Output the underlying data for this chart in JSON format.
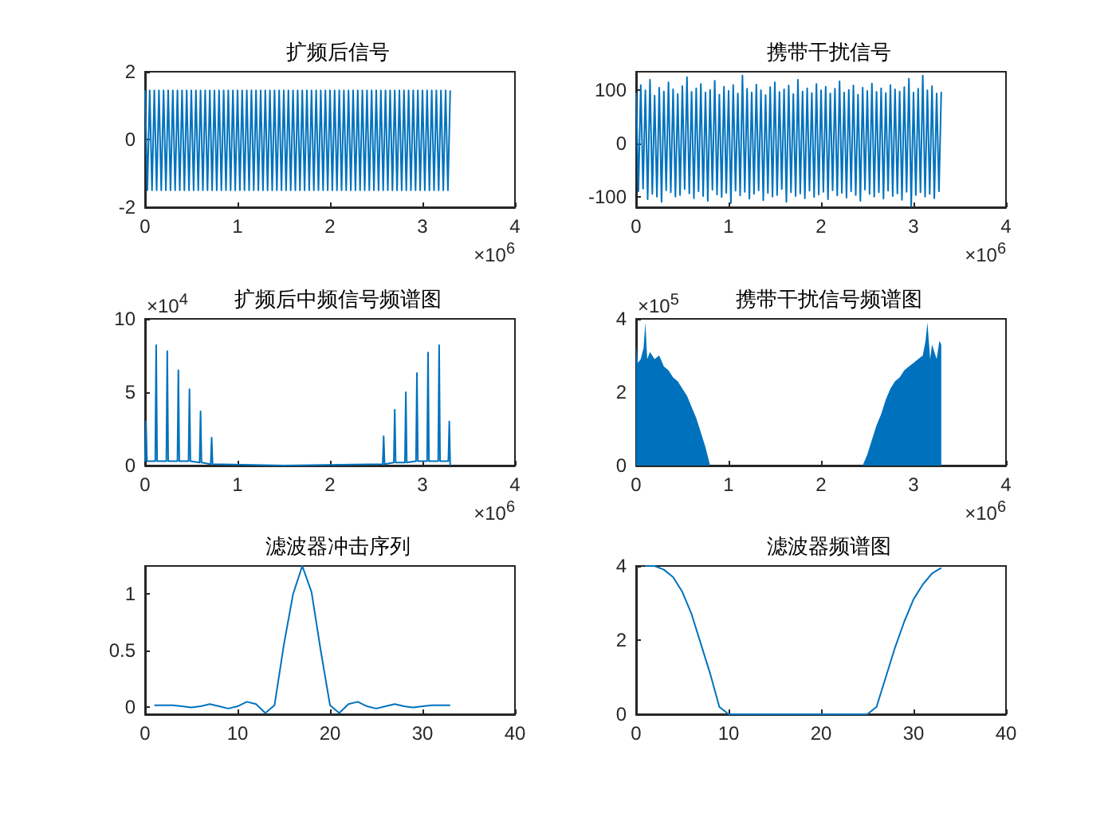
{
  "chart_data": [
    {
      "type": "line",
      "title": "扩频后信号",
      "xlabel": "×10$^{6}$",
      "xlim": [
        0,
        4
      ],
      "xticks": [
        0,
        1,
        2,
        3,
        4
      ],
      "ylim": [
        -2,
        2
      ],
      "yticks": [
        -2,
        0,
        2
      ],
      "grid": false,
      "x": [
        0,
        0.025,
        0.05,
        0.075,
        0.1,
        0.125,
        0.15,
        0.175,
        0.2,
        0.225,
        0.25,
        0.275,
        0.3,
        0.325,
        0.35,
        0.375,
        0.4,
        0.425,
        0.45,
        0.475,
        0.5,
        0.525,
        0.55,
        0.575,
        0.6,
        0.625,
        0.65,
        0.675,
        0.7,
        0.725,
        0.75,
        0.775,
        0.8,
        0.825,
        0.85,
        0.875,
        0.9,
        0.925,
        0.95,
        0.975,
        1,
        1.025,
        1.05,
        1.075,
        1.1,
        1.125,
        1.15,
        1.175,
        1.2,
        1.225,
        1.25,
        1.275,
        1.3,
        1.325,
        1.35,
        1.375,
        1.4,
        1.425,
        1.45,
        1.475,
        1.5,
        1.525,
        1.55,
        1.575,
        1.6,
        1.625,
        1.65,
        1.675,
        1.7,
        1.725,
        1.75,
        1.775,
        1.8,
        1.825,
        1.85,
        1.875,
        1.9,
        1.925,
        1.95,
        1.975,
        2,
        2.025,
        2.05,
        2.075,
        2.1,
        2.125,
        2.15,
        2.175,
        2.2,
        2.225,
        2.25,
        2.275,
        2.3,
        2.325,
        2.35,
        2.375,
        2.4,
        2.425,
        2.45,
        2.475,
        2.5,
        2.525,
        2.55,
        2.575,
        2.6,
        2.625,
        2.65,
        2.675,
        2.7,
        2.725,
        2.75,
        2.775,
        2.8,
        2.825,
        2.85,
        2.875,
        2.9,
        2.925,
        2.95,
        2.975,
        3,
        3.025,
        3.05,
        3.075,
        3.1,
        3.125,
        3.15,
        3.175,
        3.2,
        3.225,
        3.25,
        3.275,
        3.3
      ],
      "series": [
        {
          "color": "#0072bd",
          "values": [
            1.45,
            -1.5,
            1.45,
            -1.5,
            1.45,
            -1.5,
            1.45,
            -1.5,
            1.45,
            -1.5,
            1.45,
            -1.5,
            1.45,
            -1.5,
            1.45,
            -1.5,
            1.45,
            -1.5,
            1.45,
            -1.5,
            1.45,
            -1.5,
            1.45,
            -1.5,
            1.45,
            -1.5,
            1.45,
            -1.5,
            1.45,
            -1.5,
            1.45,
            -1.5,
            1.45,
            -1.5,
            1.45,
            -1.5,
            1.45,
            -1.5,
            1.45,
            -1.5,
            1.45,
            -1.5,
            1.45,
            -1.5,
            1.45,
            -1.5,
            1.45,
            -1.5,
            1.45,
            -1.5,
            1.45,
            -1.5,
            1.45,
            -1.5,
            1.45,
            -1.5,
            1.45,
            -1.5,
            1.45,
            -1.5,
            1.45,
            -1.5,
            1.45,
            -1.5,
            1.45,
            -1.5,
            1.45,
            -1.5,
            1.45,
            -1.5,
            1.45,
            -1.5,
            1.45,
            -1.5,
            1.45,
            -1.5,
            1.45,
            -1.5,
            1.45,
            -1.5,
            1.45,
            -1.5,
            1.45,
            -1.5,
            1.45,
            -1.5,
            1.45,
            -1.5,
            1.45,
            -1.5,
            1.45,
            -1.5,
            1.45,
            -1.5,
            1.45,
            -1.5,
            1.45,
            -1.5,
            1.45,
            -1.5,
            1.45,
            -1.5,
            1.45,
            -1.5,
            1.45,
            -1.5,
            1.45,
            -1.5,
            1.45,
            -1.5,
            1.45,
            -1.5,
            1.45,
            -1.5,
            1.45,
            -1.5,
            1.45,
            -1.5,
            1.45,
            -1.5,
            1.45,
            -1.5,
            1.45,
            -1.5,
            1.45,
            -1.5,
            1.45,
            -1.5,
            1.45,
            -1.5,
            1.45,
            -1.5,
            1.45
          ]
        }
      ]
    },
    {
      "type": "line",
      "title": "携带干扰信号",
      "xlabel": "×10$^{6}$",
      "xlim": [
        0,
        4
      ],
      "xticks": [
        0,
        1,
        2,
        3,
        4
      ],
      "ylim": [
        -120,
        135
      ],
      "yticks": [
        -100,
        0,
        100
      ],
      "grid": false,
      "x": [
        0,
        0.025,
        0.05,
        0.075,
        0.1,
        0.125,
        0.15,
        0.175,
        0.2,
        0.225,
        0.25,
        0.275,
        0.3,
        0.325,
        0.35,
        0.375,
        0.4,
        0.425,
        0.45,
        0.475,
        0.5,
        0.525,
        0.55,
        0.575,
        0.6,
        0.625,
        0.65,
        0.675,
        0.7,
        0.725,
        0.75,
        0.775,
        0.8,
        0.825,
        0.85,
        0.875,
        0.9,
        0.925,
        0.95,
        0.975,
        1,
        1.025,
        1.05,
        1.075,
        1.1,
        1.125,
        1.15,
        1.175,
        1.2,
        1.225,
        1.25,
        1.275,
        1.3,
        1.325,
        1.35,
        1.375,
        1.4,
        1.425,
        1.45,
        1.475,
        1.5,
        1.525,
        1.55,
        1.575,
        1.6,
        1.625,
        1.65,
        1.675,
        1.7,
        1.725,
        1.75,
        1.775,
        1.8,
        1.825,
        1.85,
        1.875,
        1.9,
        1.925,
        1.95,
        1.975,
        2,
        2.025,
        2.05,
        2.075,
        2.1,
        2.125,
        2.15,
        2.175,
        2.2,
        2.225,
        2.25,
        2.275,
        2.3,
        2.325,
        2.35,
        2.375,
        2.4,
        2.425,
        2.45,
        2.475,
        2.5,
        2.525,
        2.55,
        2.575,
        2.6,
        2.625,
        2.65,
        2.675,
        2.7,
        2.725,
        2.75,
        2.775,
        2.8,
        2.825,
        2.85,
        2.875,
        2.9,
        2.925,
        2.95,
        2.975,
        3,
        3.025,
        3.05,
        3.075,
        3.1,
        3.125,
        3.15,
        3.175,
        3.2,
        3.225,
        3.25,
        3.275,
        3.3
      ],
      "series": [
        {
          "color": "#0072bd",
          "values": [
            95,
            -90,
            110,
            -85,
            100,
            -105,
            120,
            -95,
            90,
            -100,
            105,
            -110,
            98,
            -88,
            115,
            -92,
            102,
            -100,
            93,
            -97,
            108,
            -86,
            125,
            -94,
            97,
            -103,
            104,
            -90,
            112,
            -99,
            96,
            -108,
            101,
            -87,
            118,
            -96,
            92,
            -101,
            107,
            -93,
            99,
            -112,
            110,
            -89,
            94,
            -98,
            128,
            -91,
            103,
            -104,
            96,
            -95,
            111,
            -88,
            100,
            -107,
            91,
            -93,
            106,
            -100,
            115,
            -97,
            97,
            -86,
            102,
            -110,
            109,
            -92,
            93,
            -99,
            120,
            -94,
            98,
            -103,
            104,
            -89,
            95,
            -101,
            112,
            -96,
            100,
            -91,
            107,
            -105,
            94,
            -88,
            103,
            -98,
            117,
            -93,
            96,
            -102,
            101,
            -90,
            109,
            -97,
            92,
            -108,
            105,
            -87,
            99,
            -95,
            113,
            -100,
            97,
            -92,
            104,
            -104,
            95,
            -89,
            110,
            -99,
            102,
            -94,
            98,
            -106,
            106,
            -91,
            122,
            -118,
            96,
            -97,
            103,
            -92,
            128,
            -100,
            100,
            -95,
            108,
            -103,
            94,
            -90,
            97
          ]
        }
      ]
    },
    {
      "type": "line",
      "title": "扩频后中频信号频谱图",
      "xlabel": "×10$^{6}$",
      "ylabel": "×10$^{4}$",
      "xlim": [
        0,
        4
      ],
      "xticks": [
        0,
        1,
        2,
        3,
        4
      ],
      "ylim": [
        0,
        10
      ],
      "yticks": [
        0,
        5,
        10
      ],
      "grid": false,
      "x": [
        0,
        0.01,
        0.02,
        0.11,
        0.12,
        0.13,
        0.23,
        0.24,
        0.25,
        0.35,
        0.36,
        0.37,
        0.47,
        0.48,
        0.49,
        0.59,
        0.6,
        0.61,
        0.71,
        0.72,
        0.73,
        1.5,
        2.57,
        2.58,
        2.59,
        2.69,
        2.7,
        2.71,
        2.81,
        2.82,
        2.83,
        2.93,
        2.94,
        2.95,
        3.05,
        3.06,
        3.07,
        3.17,
        3.18,
        3.19,
        3.28,
        3.29,
        3.3
      ],
      "series": [
        {
          "color": "#0072bd",
          "values": [
            0.3,
            3,
            0.3,
            0.3,
            8.2,
            0.3,
            0.3,
            7.8,
            0.3,
            0.3,
            6.5,
            0.3,
            0.3,
            5.2,
            0.3,
            0.2,
            3.7,
            0.2,
            0.1,
            1.9,
            0.1,
            0,
            0.1,
            2,
            0.1,
            0.2,
            3.8,
            0.2,
            0.2,
            5,
            0.2,
            0.3,
            6.3,
            0.3,
            0.3,
            7.7,
            0.3,
            0.3,
            8.2,
            0.3,
            0.3,
            3,
            0
          ]
        }
      ]
    },
    {
      "type": "area",
      "title": "携带干扰信号频谱图",
      "xlabel": "×10$^{6}$",
      "ylabel": "×10$^{5}$",
      "xlim": [
        0,
        4
      ],
      "xticks": [
        0,
        1,
        2,
        3,
        4
      ],
      "ylim": [
        0,
        4
      ],
      "yticks": [
        0,
        2,
        4
      ],
      "grid": false,
      "x": [
        0,
        0.02,
        0.05,
        0.08,
        0.1,
        0.12,
        0.15,
        0.2,
        0.25,
        0.3,
        0.35,
        0.4,
        0.45,
        0.5,
        0.55,
        0.6,
        0.65,
        0.7,
        0.75,
        0.8,
        1.5,
        2.45,
        2.5,
        2.55,
        2.6,
        2.65,
        2.7,
        2.75,
        2.8,
        2.85,
        2.9,
        2.95,
        3,
        3.05,
        3.1,
        3.13,
        3.15,
        3.18,
        3.2,
        3.25,
        3.28,
        3.3
      ],
      "series": [
        {
          "color": "#0072bd",
          "values": [
            3.3,
            2.8,
            2.9,
            3.2,
            3.9,
            2.9,
            3.1,
            2.9,
            3,
            2.7,
            2.6,
            2.4,
            2.3,
            2.1,
            1.9,
            1.6,
            1.3,
            0.9,
            0.5,
            0,
            0,
            0,
            0.3,
            0.7,
            1.1,
            1.4,
            1.8,
            2.1,
            2.3,
            2.4,
            2.6,
            2.7,
            2.8,
            2.9,
            3,
            3.4,
            3.9,
            2.9,
            3.3,
            2.9,
            3.4,
            3.3
          ]
        }
      ]
    },
    {
      "type": "line",
      "title": "滤波器冲击序列",
      "xlim": [
        0,
        40
      ],
      "xticks": [
        0,
        10,
        20,
        30,
        40
      ],
      "ylim": [
        -0.06,
        1.25
      ],
      "yticks": [
        0,
        0.5,
        1
      ],
      "grid": false,
      "x": [
        1,
        2,
        3,
        4,
        5,
        6,
        7,
        8,
        9,
        10,
        11,
        12,
        13,
        14,
        15,
        16,
        17,
        18,
        19,
        20,
        21,
        22,
        23,
        24,
        25,
        26,
        27,
        28,
        29,
        30,
        31,
        32,
        33
      ],
      "series": [
        {
          "color": "#0072bd",
          "values": [
            0.02,
            0.02,
            0.02,
            0.01,
            0,
            0.01,
            0.03,
            0.01,
            -0.01,
            0.01,
            0.05,
            0.03,
            -0.05,
            0.02,
            0.55,
            1,
            1.25,
            1.02,
            0.5,
            0.02,
            -0.05,
            0.03,
            0.05,
            0.01,
            -0.01,
            0.01,
            0.03,
            0.01,
            0,
            0.01,
            0.02,
            0.02,
            0.02
          ]
        }
      ]
    },
    {
      "type": "line",
      "title": "滤波器频谱图",
      "xlim": [
        0,
        40
      ],
      "xticks": [
        0,
        10,
        20,
        30,
        40
      ],
      "ylim": [
        0,
        4
      ],
      "yticks": [
        0,
        2,
        4
      ],
      "grid": false,
      "x": [
        1,
        2,
        3,
        4,
        5,
        6,
        7,
        8,
        9,
        10,
        11,
        12,
        13,
        14,
        15,
        16,
        17,
        18,
        19,
        20,
        21,
        22,
        23,
        24,
        25,
        26,
        27,
        28,
        29,
        30,
        31,
        32,
        33
      ],
      "series": [
        {
          "color": "#0072bd",
          "values": [
            4,
            4,
            3.9,
            3.7,
            3.3,
            2.7,
            1.9,
            1.1,
            0.2,
            0,
            0,
            0,
            0,
            0,
            0,
            0,
            0,
            0,
            0,
            0,
            0,
            0,
            0,
            0,
            0,
            0.2,
            1,
            1.8,
            2.5,
            3.1,
            3.5,
            3.8,
            3.95
          ]
        }
      ]
    }
  ]
}
